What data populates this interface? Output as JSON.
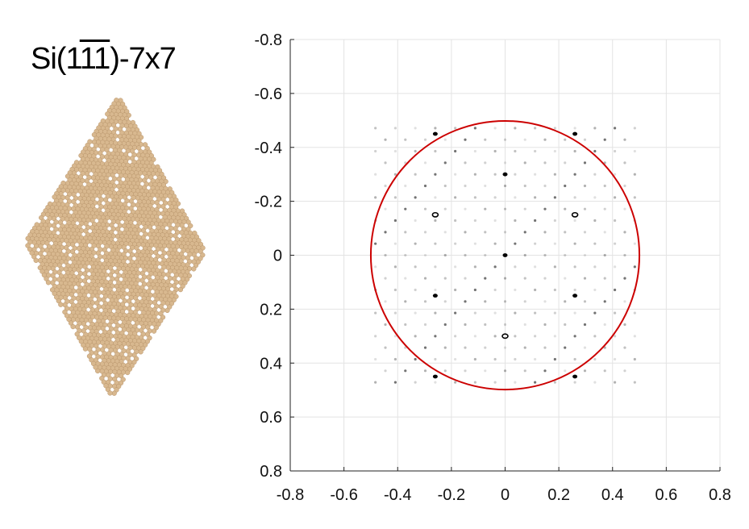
{
  "title": {
    "prefix": "Si(1",
    "overlined": "11",
    "suffix": ")-7x7"
  },
  "colors": {
    "atom": "#d8b88f",
    "atom_edge": "#b8946a",
    "circle": "#cc0000",
    "spot": "#000000",
    "grid": "#e3e3e3",
    "axis": "#222222"
  },
  "chart_data": {
    "type": "scatter",
    "title": "",
    "xlabel": "",
    "ylabel": "",
    "xlim": [
      -0.8,
      0.8
    ],
    "ylim": [
      -0.8,
      0.8
    ],
    "y_axis_inverted": true,
    "grid": true,
    "xticks": [
      "-0.8",
      "-0.6",
      "-0.4",
      "-0.2",
      "0",
      "0.2",
      "0.4",
      "0.6",
      "0.8"
    ],
    "yticks": [
      "-0.8",
      "-0.6",
      "-0.4",
      "-0.2",
      "0",
      "0.2",
      "0.4",
      "0.6",
      "0.8"
    ],
    "tick_values": [
      -0.8,
      -0.6,
      -0.4,
      -0.2,
      0,
      0.2,
      0.4,
      0.6,
      0.8
    ],
    "circle": {
      "center": [
        0,
        0
      ],
      "radius": 0.5
    },
    "bright_spots": [
      {
        "x": 0,
        "y": 0,
        "ring": false
      },
      {
        "x": 0,
        "y": -0.3,
        "ring": false
      },
      {
        "x": 0,
        "y": 0.3,
        "ring": true
      },
      {
        "x": -0.26,
        "y": -0.15,
        "ring": true
      },
      {
        "x": 0.26,
        "y": -0.15,
        "ring": true
      },
      {
        "x": -0.26,
        "y": 0.15,
        "ring": false
      },
      {
        "x": 0.26,
        "y": 0.15,
        "ring": false
      },
      {
        "x": -0.26,
        "y": -0.45,
        "ring": false
      },
      {
        "x": 0.26,
        "y": -0.45,
        "ring": false
      },
      {
        "x": -0.26,
        "y": 0.45,
        "ring": false
      },
      {
        "x": 0.26,
        "y": 0.45,
        "ring": false
      }
    ],
    "superlattice_extent": 0.5,
    "superlattice_order": 7
  }
}
